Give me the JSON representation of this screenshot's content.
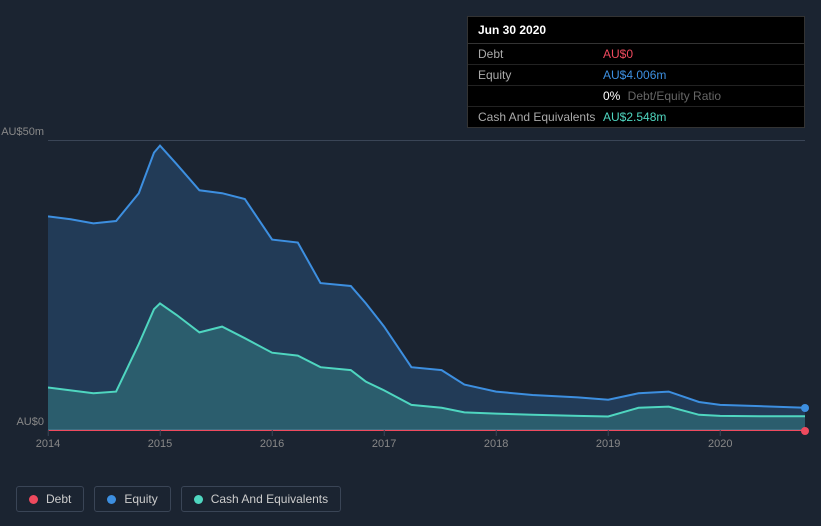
{
  "tooltip": {
    "title": "Jun 30 2020",
    "rows": [
      {
        "label": "Debt",
        "value": "AU$0",
        "color": "#ef4a5e"
      },
      {
        "label": "Equity",
        "value": "AU$4.006m",
        "color": "#3d8fe0"
      },
      {
        "label": "",
        "value": "0%",
        "extra": "Debt/Equity Ratio",
        "color": "#ffffff"
      },
      {
        "label": "Cash And Equivalents",
        "value": "AU$2.548m",
        "color": "#4fd6c0"
      }
    ]
  },
  "chart": {
    "type": "area",
    "background_color": "#1b2431",
    "grid_color": "#3a4556",
    "ylim": [
      0,
      50
    ],
    "ylabels": [
      {
        "text": "AU$50m",
        "v": 50
      },
      {
        "text": "AU$0",
        "v": 0
      }
    ],
    "xticks": [
      {
        "label": "2014",
        "t": 0.0
      },
      {
        "label": "2015",
        "t": 0.148
      },
      {
        "label": "2016",
        "t": 0.296
      },
      {
        "label": "2017",
        "t": 0.444
      },
      {
        "label": "2018",
        "t": 0.592
      },
      {
        "label": "2019",
        "t": 0.74
      },
      {
        "label": "2020",
        "t": 0.888
      }
    ],
    "series": [
      {
        "name": "Equity",
        "color": "#3d8fe0",
        "fill": "rgba(61,143,224,0.22)",
        "points": [
          [
            0.0,
            37
          ],
          [
            0.03,
            36.5
          ],
          [
            0.06,
            35.8
          ],
          [
            0.09,
            36.2
          ],
          [
            0.12,
            41
          ],
          [
            0.14,
            48
          ],
          [
            0.148,
            49.2
          ],
          [
            0.17,
            46
          ],
          [
            0.2,
            41.5
          ],
          [
            0.23,
            41
          ],
          [
            0.26,
            40
          ],
          [
            0.296,
            33
          ],
          [
            0.33,
            32.5
          ],
          [
            0.36,
            25.5
          ],
          [
            0.4,
            25
          ],
          [
            0.42,
            22
          ],
          [
            0.444,
            18
          ],
          [
            0.48,
            11
          ],
          [
            0.52,
            10.5
          ],
          [
            0.55,
            8
          ],
          [
            0.592,
            6.8
          ],
          [
            0.64,
            6.2
          ],
          [
            0.7,
            5.8
          ],
          [
            0.74,
            5.4
          ],
          [
            0.78,
            6.5
          ],
          [
            0.82,
            6.8
          ],
          [
            0.86,
            5.0
          ],
          [
            0.888,
            4.5
          ],
          [
            0.94,
            4.3
          ],
          [
            1.0,
            4.0
          ]
        ]
      },
      {
        "name": "Cash And Equivalents",
        "color": "#4fd6c0",
        "fill": "rgba(79,214,192,0.22)",
        "points": [
          [
            0.0,
            7.5
          ],
          [
            0.03,
            7.0
          ],
          [
            0.06,
            6.5
          ],
          [
            0.09,
            6.8
          ],
          [
            0.12,
            15
          ],
          [
            0.14,
            21
          ],
          [
            0.148,
            22
          ],
          [
            0.17,
            20
          ],
          [
            0.2,
            17
          ],
          [
            0.23,
            18
          ],
          [
            0.26,
            16
          ],
          [
            0.296,
            13.5
          ],
          [
            0.33,
            13
          ],
          [
            0.36,
            11
          ],
          [
            0.4,
            10.5
          ],
          [
            0.42,
            8.5
          ],
          [
            0.444,
            7.0
          ],
          [
            0.48,
            4.5
          ],
          [
            0.52,
            4.0
          ],
          [
            0.55,
            3.2
          ],
          [
            0.592,
            3.0
          ],
          [
            0.64,
            2.8
          ],
          [
            0.7,
            2.6
          ],
          [
            0.74,
            2.5
          ],
          [
            0.78,
            4.0
          ],
          [
            0.82,
            4.2
          ],
          [
            0.86,
            2.8
          ],
          [
            0.888,
            2.6
          ],
          [
            0.94,
            2.55
          ],
          [
            1.0,
            2.55
          ]
        ]
      },
      {
        "name": "Debt",
        "color": "#ef4a5e",
        "fill": "rgba(239,74,94,0.25)",
        "points": [
          [
            0.0,
            0
          ],
          [
            0.5,
            0
          ],
          [
            1.0,
            0
          ]
        ]
      }
    ],
    "end_markers": [
      {
        "series": "Equity",
        "t": 1.0,
        "v": 4.0,
        "color": "#3d8fe0"
      },
      {
        "series": "Debt",
        "t": 1.0,
        "v": 0,
        "color": "#ef4a5e"
      }
    ]
  },
  "legend": [
    {
      "label": "Debt",
      "color": "#ef4a5e"
    },
    {
      "label": "Equity",
      "color": "#3d8fe0"
    },
    {
      "label": "Cash And Equivalents",
      "color": "#4fd6c0"
    }
  ]
}
